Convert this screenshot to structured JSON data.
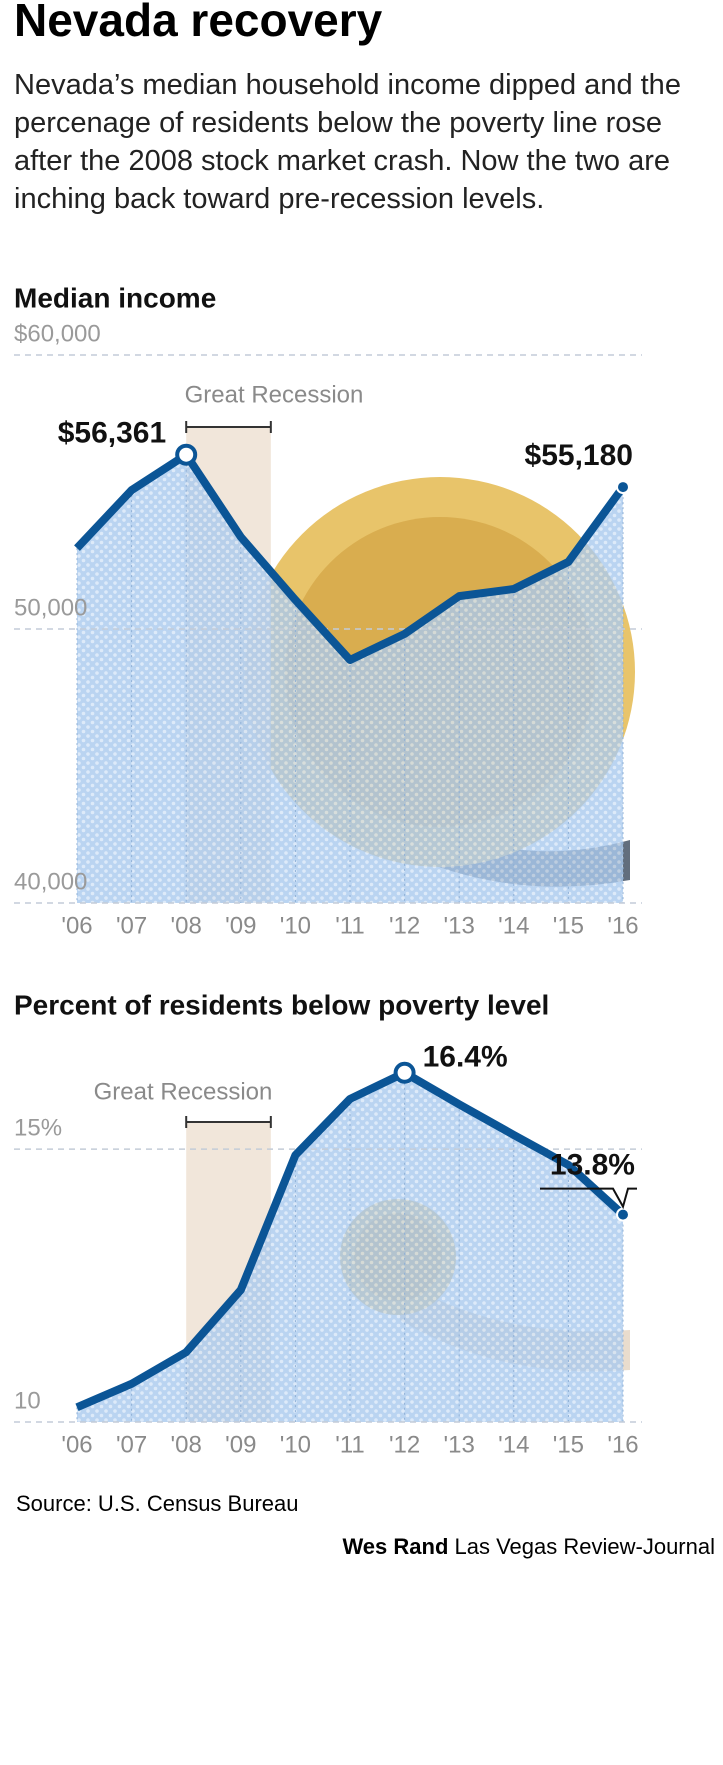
{
  "title": "Nevada recovery",
  "subtitle": "Nevada’s median household income dipped and the percenage of residents below the poverty line rose after the 2008 stock market crash. Now the two are inching back toward pre-recession levels.",
  "source": "Source: U.S. Census Bureau",
  "credit": {
    "author": "Wes Rand",
    "outlet": "Las Vegas Review-Journal"
  },
  "chart_data": [
    {
      "type": "line",
      "title": "Median income",
      "annotation": "Great Recession",
      "categories": [
        "'06",
        "'07",
        "'08",
        "'09",
        "'10",
        "'11",
        "'12",
        "'13",
        "'14",
        "'15",
        "'16"
      ],
      "values": [
        52950,
        55070,
        56361,
        53360,
        51060,
        48870,
        49820,
        51200,
        51460,
        52450,
        55180
      ],
      "value_labels": [
        null,
        null,
        "$56,361",
        null,
        null,
        null,
        null,
        null,
        null,
        null,
        "$55,180"
      ],
      "color": "#0b5596",
      "fill": "#a9c9ee",
      "ylim": [
        40000,
        60000
      ],
      "yticks": [
        {
          "value": 40000,
          "label": "40,000"
        },
        {
          "value": 50000,
          "label": "50,000"
        },
        {
          "value": 60000,
          "label": "$60,000"
        }
      ],
      "grid": true
    },
    {
      "type": "line",
      "title": "Percent of residents below poverty level",
      "annotation": "Great Recession",
      "categories": [
        "'06",
        "'07",
        "'08",
        "'09",
        "'10",
        "'11",
        "'12",
        "'13",
        "'14",
        "'15",
        "'16"
      ],
      "values": [
        10.27,
        10.7,
        11.28,
        12.42,
        14.89,
        15.92,
        16.4,
        15.82,
        15.26,
        14.71,
        13.8
      ],
      "value_labels": [
        null,
        null,
        null,
        null,
        null,
        null,
        "16.4%",
        null,
        null,
        null,
        "13.8%"
      ],
      "color": "#0b5596",
      "fill": "#a9c9ee",
      "ylim": [
        10,
        17
      ],
      "yticks": [
        10,
        {
          "value": 15,
          "label": "15%"
        }
      ],
      "grid": true
    }
  ]
}
